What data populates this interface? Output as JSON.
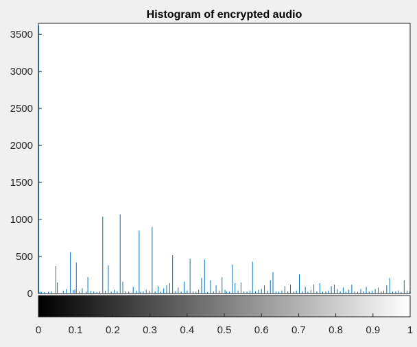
{
  "chart_data": {
    "type": "bar",
    "title": "Histogram of encrypted audio",
    "xlabel": "",
    "ylabel": "",
    "xlim": [
      0,
      1
    ],
    "ylim": [
      0,
      3650
    ],
    "grid": false,
    "colorbar": "grayscale",
    "bar_color": "#0072bd",
    "xticks": [
      "0",
      "0.1",
      "0.2",
      "0.3",
      "0.4",
      "0.5",
      "0.6",
      "0.7",
      "0.8",
      "0.9",
      "1"
    ],
    "yticks": [
      "0",
      "500",
      "1000",
      "1500",
      "2000",
      "2500",
      "3000",
      "3500"
    ],
    "x": [
      0.0,
      0.004,
      0.008,
      0.016,
      0.027,
      0.035,
      0.047,
      0.051,
      0.067,
      0.075,
      0.086,
      0.094,
      0.098,
      0.102,
      0.11,
      0.118,
      0.129,
      0.133,
      0.141,
      0.149,
      0.157,
      0.165,
      0.173,
      0.18,
      0.188,
      0.196,
      0.204,
      0.212,
      0.22,
      0.227,
      0.235,
      0.243,
      0.255,
      0.263,
      0.271,
      0.275,
      0.282,
      0.29,
      0.298,
      0.306,
      0.314,
      0.322,
      0.329,
      0.337,
      0.345,
      0.353,
      0.361,
      0.369,
      0.376,
      0.384,
      0.392,
      0.4,
      0.408,
      0.416,
      0.424,
      0.431,
      0.439,
      0.447,
      0.455,
      0.463,
      0.471,
      0.478,
      0.486,
      0.494,
      0.502,
      0.506,
      0.514,
      0.522,
      0.529,
      0.537,
      0.545,
      0.553,
      0.561,
      0.569,
      0.576,
      0.584,
      0.592,
      0.6,
      0.608,
      0.616,
      0.624,
      0.631,
      0.639,
      0.647,
      0.655,
      0.663,
      0.671,
      0.678,
      0.686,
      0.694,
      0.702,
      0.71,
      0.718,
      0.725,
      0.733,
      0.741,
      0.749,
      0.757,
      0.765,
      0.773,
      0.78,
      0.788,
      0.796,
      0.804,
      0.812,
      0.82,
      0.827,
      0.835,
      0.843,
      0.851,
      0.859,
      0.867,
      0.875,
      0.882,
      0.89,
      0.898,
      0.906,
      0.914,
      0.922,
      0.929,
      0.937,
      0.945,
      0.953,
      0.961,
      0.969,
      0.976,
      0.984,
      0.992,
      1.0
    ],
    "values": [
      3620,
      25,
      20,
      18,
      22,
      30,
      370,
      150,
      40,
      60,
      560,
      45,
      55,
      420,
      30,
      70,
      25,
      220,
      35,
      28,
      20,
      30,
      1040,
      40,
      380,
      25,
      50,
      30,
      1070,
      160,
      30,
      25,
      90,
      40,
      850,
      25,
      30,
      50,
      40,
      900,
      30,
      100,
      25,
      70,
      110,
      140,
      520,
      35,
      80,
      25,
      160,
      40,
      470,
      30,
      25,
      50,
      210,
      460,
      20,
      180,
      30,
      110,
      40,
      220,
      50,
      30,
      25,
      390,
      140,
      40,
      150,
      30,
      25,
      40,
      430,
      30,
      50,
      60,
      110,
      40,
      180,
      290,
      30,
      25,
      40,
      100,
      30,
      120,
      25,
      40,
      260,
      30,
      90,
      25,
      50,
      120,
      30,
      140,
      25,
      30,
      40,
      100,
      120,
      60,
      30,
      80,
      25,
      50,
      120,
      30,
      25,
      60,
      30,
      90,
      25,
      40,
      60,
      80,
      30,
      40,
      110,
      210,
      25,
      30,
      40,
      20,
      180,
      40,
      30
    ]
  }
}
